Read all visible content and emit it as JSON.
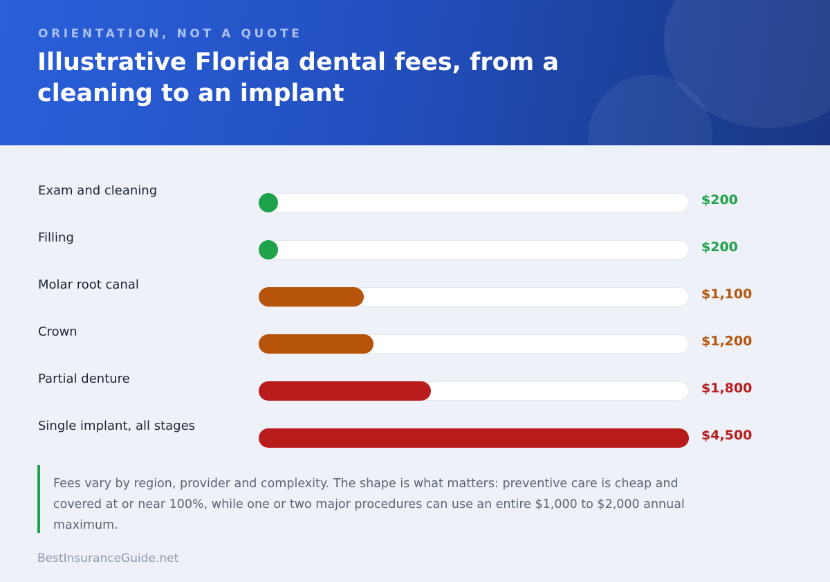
{
  "header": {
    "eyebrow": "ORIENTATION, NOT A QUOTE",
    "title": "Illustrative Florida dental fees, from a cleaning to an implant"
  },
  "colors": {
    "low": "#1fa34a",
    "mid": "#b5540a",
    "high": "#b91c1c"
  },
  "chart_data": {
    "type": "bar",
    "orientation": "horizontal",
    "categories": [
      "Exam and cleaning",
      "Filling",
      "Molar root canal",
      "Crown",
      "Partial denture",
      "Single implant, all stages"
    ],
    "values": [
      200,
      200,
      1100,
      1200,
      1800,
      4500
    ],
    "value_labels": [
      "$200",
      "$200",
      "$1,100",
      "$1,200",
      "$1,800",
      "$4,500"
    ],
    "tiers": [
      "low",
      "low",
      "mid",
      "mid",
      "high",
      "high"
    ],
    "xlim": [
      0,
      4500
    ],
    "grid": false
  },
  "note": "Fees vary by region, provider and complexity. The shape is what matters: preventive care is cheap and covered at or near 100%, while one or two major procedures can use an entire $1,000 to $2,000 annual maximum.",
  "footer": "BestInsuranceGuide.net"
}
